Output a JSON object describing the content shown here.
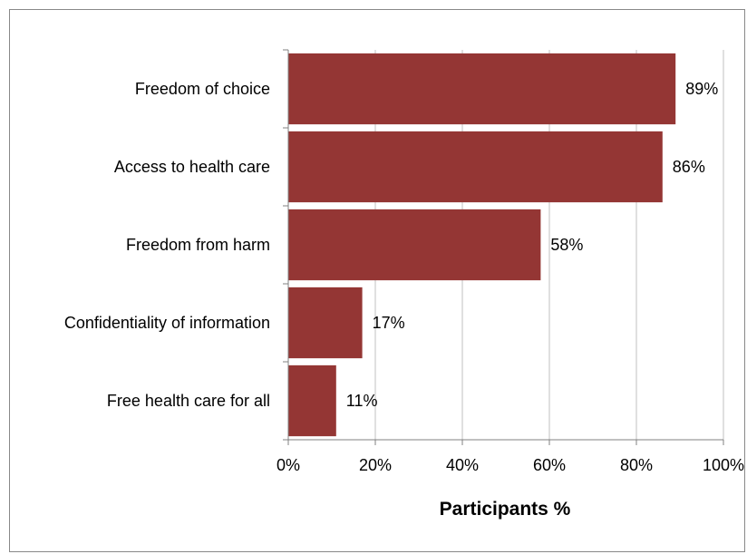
{
  "chart_data": {
    "type": "bar",
    "orientation": "horizontal",
    "categories": [
      "Freedom of choice",
      "Access to health care",
      "Freedom from harm",
      "Confidentiality of information",
      "Free health care for all"
    ],
    "values": [
      89,
      86,
      58,
      17,
      11
    ],
    "data_labels": [
      "89%",
      "86%",
      "58%",
      "17%",
      "11%"
    ],
    "xlabel": "Participants %",
    "xlim": [
      0,
      100
    ],
    "x_ticks": [
      0,
      20,
      40,
      60,
      80,
      100
    ],
    "x_tick_labels": [
      "0%",
      "20%",
      "40%",
      "60%",
      "80%",
      "100%"
    ],
    "grid": "vertical",
    "legend": "none",
    "bar_color": "#943634",
    "grid_color": "#c0c0c0",
    "axis_color": "#808080"
  }
}
